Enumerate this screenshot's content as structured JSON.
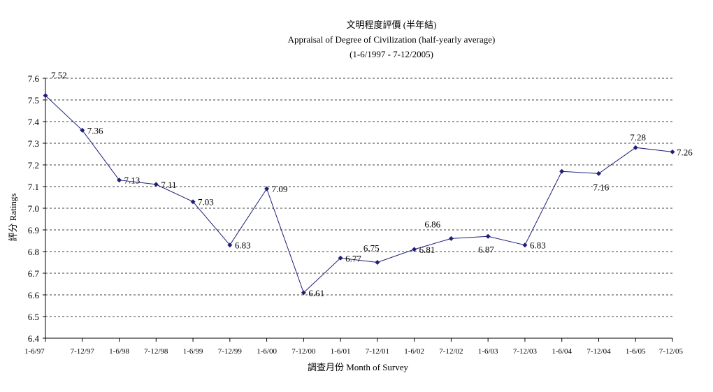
{
  "chart_data": {
    "type": "line",
    "title": "文明程度評價 (半年結)",
    "subtitle": "Appraisal of Degree of Civilization (half-yearly average)",
    "period": "(1-6/1997 - 7-12/2005)",
    "xlabel": "調查月份 Month of Survey",
    "ylabel": "評分 Ratings",
    "ylim": [
      6.4,
      7.6
    ],
    "yticks": [
      "6.4",
      "6.5",
      "6.6",
      "6.7",
      "6.8",
      "6.9",
      "7.0",
      "7.1",
      "7.2",
      "7.3",
      "7.4",
      "7.5",
      "7.6"
    ],
    "grid": true,
    "categories": [
      "1-6/97",
      "7-12/97",
      "1-6/98",
      "7-12/98",
      "1-6/99",
      "7-12/99",
      "1-6/00",
      "7-12/00",
      "1-6/01",
      "7-12/01",
      "1-6/02",
      "7-12/02",
      "1-6/03",
      "7-12/03",
      "1-6/04",
      "7-12/04",
      "1-6/05",
      "7-12/05"
    ],
    "series": [
      {
        "values": [
          7.52,
          7.36,
          7.13,
          7.11,
          7.03,
          6.83,
          7.09,
          6.61,
          6.77,
          6.75,
          6.81,
          6.86,
          6.87,
          6.83,
          7.17,
          7.16,
          7.28,
          7.26
        ],
        "labels": [
          "7.52",
          "7.36",
          "7.13",
          "7.11",
          "7.03",
          "6.83",
          "7.09",
          "6.61",
          "6.77",
          "6.75",
          "6.81",
          "6.86",
          "6.87",
          "6.83",
          "",
          "7.16",
          "7.28",
          "7.26"
        ],
        "color": "#1f1f7a"
      }
    ]
  }
}
